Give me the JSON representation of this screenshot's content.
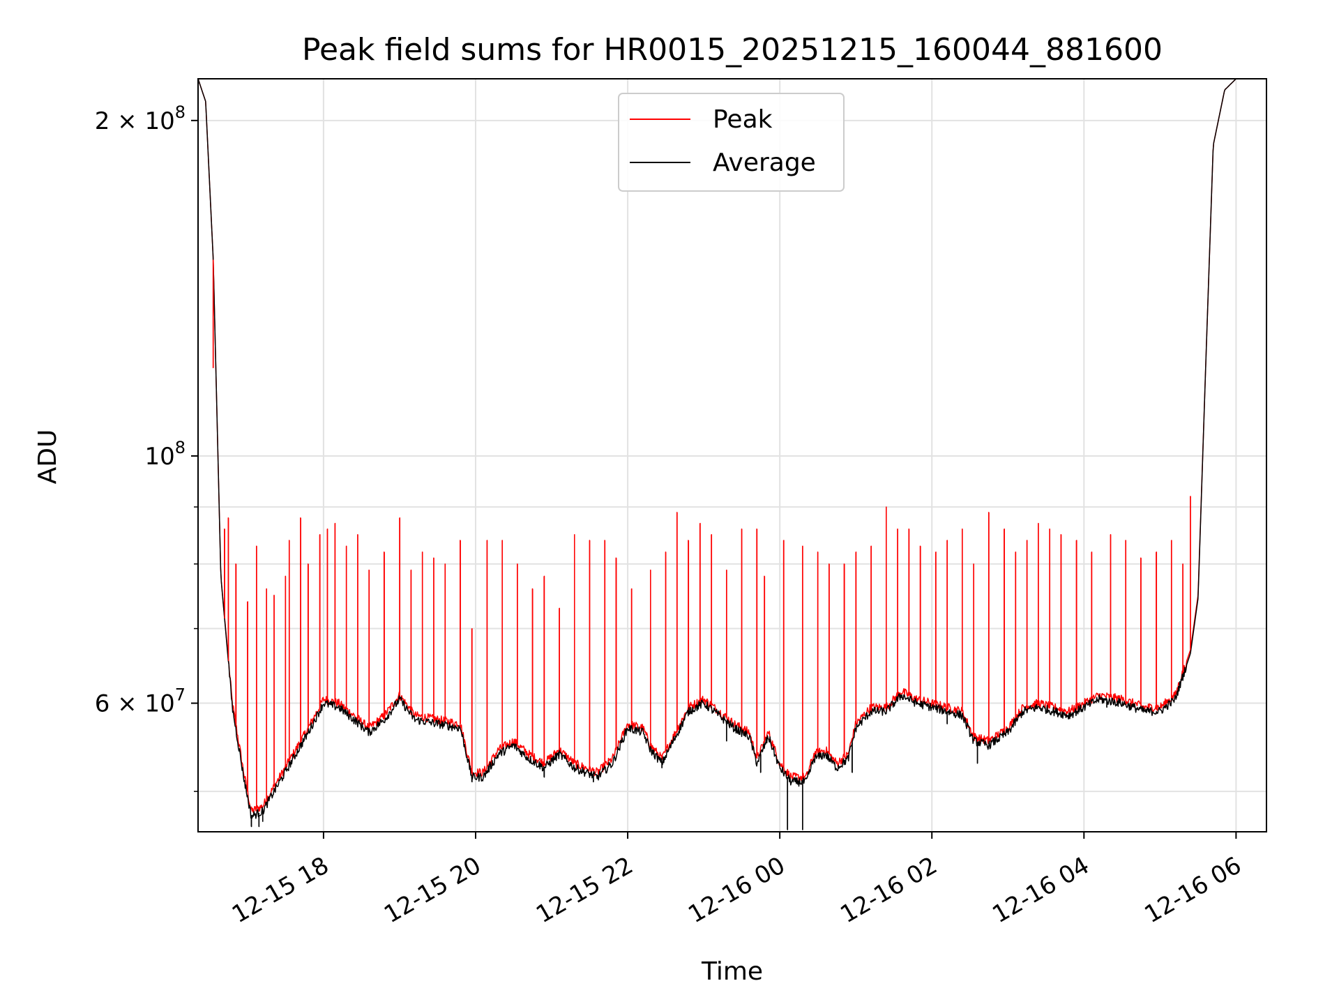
{
  "chart_data": {
    "type": "line",
    "title": "Peak field sums for HR0015_20251215_160044_881600",
    "xlabel": "Time",
    "ylabel": "ADU",
    "yscale": "log",
    "ylim": [
      46000000,
      218000000
    ],
    "xlim": [
      16.35,
      30.4
    ],
    "grid": true,
    "legend_position": "top-center",
    "x_ticks": [
      {
        "value": 18,
        "label": "12-15 18"
      },
      {
        "value": 20,
        "label": "12-15 20"
      },
      {
        "value": 22,
        "label": "12-15 22"
      },
      {
        "value": 24,
        "label": "12-16 00"
      },
      {
        "value": 26,
        "label": "12-16 02"
      },
      {
        "value": 28,
        "label": "12-16 04"
      },
      {
        "value": 30,
        "label": "12-16 06"
      }
    ],
    "y_major_ticks": [
      {
        "value": 200000000,
        "mantissa": "2",
        "times": "×",
        "base": "10",
        "exp": "8"
      },
      {
        "value": 100000000,
        "mantissa": "",
        "times": "",
        "base": "10",
        "exp": "8"
      },
      {
        "value": 60000000,
        "mantissa": "6",
        "times": "×",
        "base": "10",
        "exp": "7"
      }
    ],
    "y_minor_ticks": [
      50000000,
      70000000,
      80000000,
      90000000
    ],
    "x_unit_note": "hours since 2025-12-15 00:00",
    "series": [
      {
        "name": "Peak",
        "color": "#ff0000",
        "baseline": [
          [
            16.35,
            218000000
          ],
          [
            16.45,
            208000000
          ],
          [
            16.55,
            150000000
          ],
          [
            16.65,
            78000000
          ],
          [
            16.8,
            60000000
          ],
          [
            16.95,
            52000000
          ],
          [
            17.05,
            48000000
          ],
          [
            17.2,
            48500000
          ],
          [
            17.35,
            50500000
          ],
          [
            17.6,
            54000000
          ],
          [
            17.8,
            57000000
          ],
          [
            18.0,
            60500000
          ],
          [
            18.2,
            60000000
          ],
          [
            18.4,
            58500000
          ],
          [
            18.6,
            57000000
          ],
          [
            18.8,
            58500000
          ],
          [
            19.0,
            61000000
          ],
          [
            19.2,
            58500000
          ],
          [
            19.5,
            58000000
          ],
          [
            19.8,
            57500000
          ],
          [
            19.95,
            52000000
          ],
          [
            20.1,
            52000000
          ],
          [
            20.3,
            54500000
          ],
          [
            20.5,
            55500000
          ],
          [
            20.7,
            54000000
          ],
          [
            20.9,
            53000000
          ],
          [
            21.1,
            54500000
          ],
          [
            21.3,
            53000000
          ],
          [
            21.6,
            52000000
          ],
          [
            21.8,
            53500000
          ],
          [
            22.0,
            57500000
          ],
          [
            22.2,
            57000000
          ],
          [
            22.3,
            55000000
          ],
          [
            22.45,
            53500000
          ],
          [
            22.6,
            56000000
          ],
          [
            22.8,
            59500000
          ],
          [
            23.0,
            60500000
          ],
          [
            23.2,
            59000000
          ],
          [
            23.4,
            57500000
          ],
          [
            23.6,
            56500000
          ],
          [
            23.7,
            53500000
          ],
          [
            23.85,
            56500000
          ],
          [
            24.0,
            53000000
          ],
          [
            24.15,
            51500000
          ],
          [
            24.35,
            51500000
          ],
          [
            24.45,
            54000000
          ],
          [
            24.6,
            54500000
          ],
          [
            24.75,
            53000000
          ],
          [
            24.9,
            54000000
          ],
          [
            25.0,
            57500000
          ],
          [
            25.2,
            59500000
          ],
          [
            25.4,
            59500000
          ],
          [
            25.6,
            61500000
          ],
          [
            25.8,
            60500000
          ],
          [
            26.0,
            60000000
          ],
          [
            26.2,
            59500000
          ],
          [
            26.4,
            59000000
          ],
          [
            26.55,
            56000000
          ],
          [
            26.75,
            55500000
          ],
          [
            27.0,
            57000000
          ],
          [
            27.2,
            59500000
          ],
          [
            27.4,
            60000000
          ],
          [
            27.6,
            59500000
          ],
          [
            27.8,
            59000000
          ],
          [
            28.0,
            60000000
          ],
          [
            28.2,
            61000000
          ],
          [
            28.5,
            60500000
          ],
          [
            28.8,
            59500000
          ],
          [
            29.0,
            59500000
          ],
          [
            29.2,
            61000000
          ],
          [
            29.4,
            67000000
          ],
          [
            29.5,
            75000000
          ],
          [
            29.6,
            120000000
          ],
          [
            29.7,
            190000000
          ],
          [
            29.85,
            213000000
          ],
          [
            30.0,
            218000000
          ],
          [
            30.4,
            218000000
          ]
        ],
        "spikes": [
          [
            16.55,
            120000000
          ],
          [
            16.7,
            86000000
          ],
          [
            16.75,
            88000000
          ],
          [
            16.85,
            80000000
          ],
          [
            17.0,
            74000000
          ],
          [
            17.12,
            83000000
          ],
          [
            17.25,
            76000000
          ],
          [
            17.35,
            75000000
          ],
          [
            17.5,
            78000000
          ],
          [
            17.55,
            84000000
          ],
          [
            17.7,
            88000000
          ],
          [
            17.8,
            80000000
          ],
          [
            17.95,
            85000000
          ],
          [
            18.05,
            86000000
          ],
          [
            18.15,
            87000000
          ],
          [
            18.3,
            83000000
          ],
          [
            18.45,
            85000000
          ],
          [
            18.6,
            79000000
          ],
          [
            18.8,
            82000000
          ],
          [
            19.0,
            88000000
          ],
          [
            19.15,
            79000000
          ],
          [
            19.3,
            82000000
          ],
          [
            19.45,
            81000000
          ],
          [
            19.6,
            80000000
          ],
          [
            19.8,
            84000000
          ],
          [
            19.95,
            70000000
          ],
          [
            20.15,
            84000000
          ],
          [
            20.35,
            84000000
          ],
          [
            20.55,
            80000000
          ],
          [
            20.75,
            76000000
          ],
          [
            20.9,
            78000000
          ],
          [
            21.1,
            73000000
          ],
          [
            21.3,
            85000000
          ],
          [
            21.5,
            84000000
          ],
          [
            21.7,
            84000000
          ],
          [
            21.85,
            81000000
          ],
          [
            22.05,
            76000000
          ],
          [
            22.3,
            79000000
          ],
          [
            22.5,
            82000000
          ],
          [
            22.65,
            89000000
          ],
          [
            22.8,
            84000000
          ],
          [
            22.95,
            87000000
          ],
          [
            23.1,
            85000000
          ],
          [
            23.3,
            79000000
          ],
          [
            23.5,
            86000000
          ],
          [
            23.7,
            86000000
          ],
          [
            23.8,
            78000000
          ],
          [
            24.05,
            84000000
          ],
          [
            24.3,
            83000000
          ],
          [
            24.5,
            82000000
          ],
          [
            24.65,
            80000000
          ],
          [
            24.85,
            80000000
          ],
          [
            25.0,
            82000000
          ],
          [
            25.2,
            83000000
          ],
          [
            25.4,
            90000000
          ],
          [
            25.55,
            86000000
          ],
          [
            25.7,
            86000000
          ],
          [
            25.85,
            83000000
          ],
          [
            26.05,
            82000000
          ],
          [
            26.2,
            84000000
          ],
          [
            26.4,
            86000000
          ],
          [
            26.55,
            80000000
          ],
          [
            26.75,
            89000000
          ],
          [
            26.95,
            86000000
          ],
          [
            27.1,
            82000000
          ],
          [
            27.25,
            84000000
          ],
          [
            27.4,
            87000000
          ],
          [
            27.55,
            86000000
          ],
          [
            27.7,
            85000000
          ],
          [
            27.9,
            84000000
          ],
          [
            28.1,
            82000000
          ],
          [
            28.35,
            85000000
          ],
          [
            28.55,
            84000000
          ],
          [
            28.75,
            81000000
          ],
          [
            28.95,
            82000000
          ],
          [
            29.15,
            84000000
          ],
          [
            29.3,
            80000000
          ],
          [
            29.4,
            92000000
          ]
        ]
      },
      {
        "name": "Average",
        "color": "#000000",
        "baseline": [
          [
            16.35,
            218000000
          ],
          [
            16.45,
            208000000
          ],
          [
            16.55,
            150000000
          ],
          [
            16.65,
            78000000
          ],
          [
            16.8,
            59500000
          ],
          [
            16.95,
            51500000
          ],
          [
            17.05,
            47500000
          ],
          [
            17.2,
            48000000
          ],
          [
            17.35,
            50000000
          ],
          [
            17.6,
            53500000
          ],
          [
            17.8,
            56500000
          ],
          [
            18.0,
            60000000
          ],
          [
            18.2,
            59500000
          ],
          [
            18.4,
            58000000
          ],
          [
            18.6,
            56500000
          ],
          [
            18.8,
            58000000
          ],
          [
            19.0,
            60500000
          ],
          [
            19.2,
            58000000
          ],
          [
            19.5,
            57500000
          ],
          [
            19.8,
            57000000
          ],
          [
            19.95,
            51500000
          ],
          [
            20.1,
            51500000
          ],
          [
            20.3,
            54000000
          ],
          [
            20.5,
            55000000
          ],
          [
            20.7,
            53500000
          ],
          [
            20.9,
            52500000
          ],
          [
            21.1,
            54000000
          ],
          [
            21.3,
            52500000
          ],
          [
            21.6,
            51500000
          ],
          [
            21.8,
            53000000
          ],
          [
            22.0,
            57000000
          ],
          [
            22.2,
            56500000
          ],
          [
            22.3,
            54500000
          ],
          [
            22.45,
            53000000
          ],
          [
            22.6,
            55500000
          ],
          [
            22.8,
            59000000
          ],
          [
            23.0,
            60000000
          ],
          [
            23.2,
            58500000
          ],
          [
            23.4,
            57000000
          ],
          [
            23.6,
            56000000
          ],
          [
            23.7,
            53000000
          ],
          [
            23.85,
            56000000
          ],
          [
            24.0,
            52500000
          ],
          [
            24.15,
            51000000
          ],
          [
            24.35,
            51000000
          ],
          [
            24.45,
            53500000
          ],
          [
            24.6,
            54000000
          ],
          [
            24.75,
            52500000
          ],
          [
            24.9,
            53500000
          ],
          [
            25.0,
            57000000
          ],
          [
            25.2,
            59000000
          ],
          [
            25.4,
            59000000
          ],
          [
            25.6,
            61000000
          ],
          [
            25.8,
            60000000
          ],
          [
            26.0,
            59500000
          ],
          [
            26.2,
            59000000
          ],
          [
            26.4,
            58500000
          ],
          [
            26.55,
            55500000
          ],
          [
            26.75,
            55000000
          ],
          [
            27.0,
            56500000
          ],
          [
            27.2,
            59000000
          ],
          [
            27.4,
            59500000
          ],
          [
            27.6,
            59000000
          ],
          [
            27.8,
            58500000
          ],
          [
            28.0,
            59500000
          ],
          [
            28.2,
            60500000
          ],
          [
            28.5,
            60000000
          ],
          [
            28.8,
            59000000
          ],
          [
            29.0,
            59000000
          ],
          [
            29.2,
            60500000
          ],
          [
            29.4,
            66500000
          ],
          [
            29.5,
            74500000
          ],
          [
            29.6,
            120000000
          ],
          [
            29.7,
            190000000
          ],
          [
            29.85,
            213000000
          ],
          [
            30.0,
            218000000
          ],
          [
            30.4,
            218000000
          ]
        ],
        "dips": [
          [
            17.05,
            46500000
          ],
          [
            17.15,
            46500000
          ],
          [
            17.2,
            47000000
          ],
          [
            18.4,
            57500000
          ],
          [
            19.95,
            51000000
          ],
          [
            20.9,
            51500000
          ],
          [
            21.55,
            51000000
          ],
          [
            22.45,
            52500000
          ],
          [
            23.3,
            55500000
          ],
          [
            23.75,
            52000000
          ],
          [
            24.1,
            46200000
          ],
          [
            24.3,
            46200000
          ],
          [
            24.95,
            52000000
          ],
          [
            26.2,
            57500000
          ],
          [
            26.6,
            53000000
          ],
          [
            28.3,
            59500000
          ]
        ]
      }
    ]
  }
}
